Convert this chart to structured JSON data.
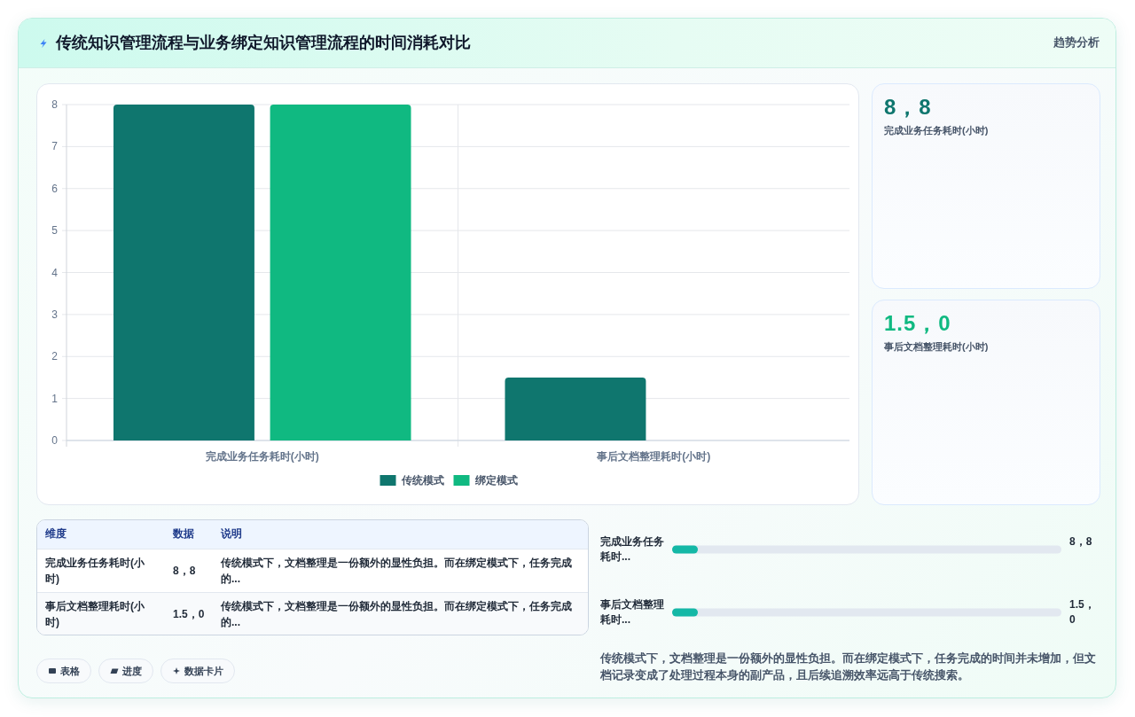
{
  "chart_data": [
    {
      "type": "bar",
      "title": "传统知识管理流程与业务绑定知识管理流程的时间消耗对比",
      "annotations": [
        "趋势分析"
      ],
      "categories": [
        "完成业务任务耗时(小时)",
        "事后文档整理耗时(小时)"
      ],
      "series": [
        {
          "name": "传统模式",
          "color": "#0f766e",
          "values": [
            8,
            1.5
          ]
        },
        {
          "name": "绑定模式",
          "color": "#10b981",
          "values": [
            8,
            0
          ]
        }
      ],
      "ylim": [
        0,
        8
      ],
      "yticks": [
        0,
        1,
        2,
        3,
        4,
        5,
        6,
        7,
        8
      ],
      "grid": true,
      "legend": "bottom"
    },
    {
      "type": "other",
      "title": "8，8",
      "subtitle": "完成业务任务耗时(小时)"
    },
    {
      "type": "other",
      "title": "1.5，0",
      "subtitle": "事后文档整理耗时(小时)"
    },
    {
      "type": "other",
      "annotations": [
        "维度",
        "数据",
        "说明",
        "完成业务任务耗时(小时)",
        "8，8",
        "传统模式下，文档整理是一份额外的显性负担。而在绑定模式下，任务完成的...",
        "事后文档整理耗时(小时)",
        "1.5，0",
        "传统模式下，文档整理是一份额外的显性负担。而在绑定模式下，任务完成的..."
      ]
    },
    {
      "type": "other",
      "annotations": [
        "表格",
        "进度",
        "数据卡片"
      ]
    },
    {
      "type": "other",
      "annotations": [
        "完成业务任务耗时...",
        "8，8",
        "事后文档整理耗时...",
        "1.5，0",
        "传统模式下，文档整理是一份额外的显性负担。而在绑定模式下，任务完成的时间并未增加，但文档记录变成了处理过程本身的副产品，且后续追溯效率远高于传统搜索。"
      ]
    }
  ]
}
